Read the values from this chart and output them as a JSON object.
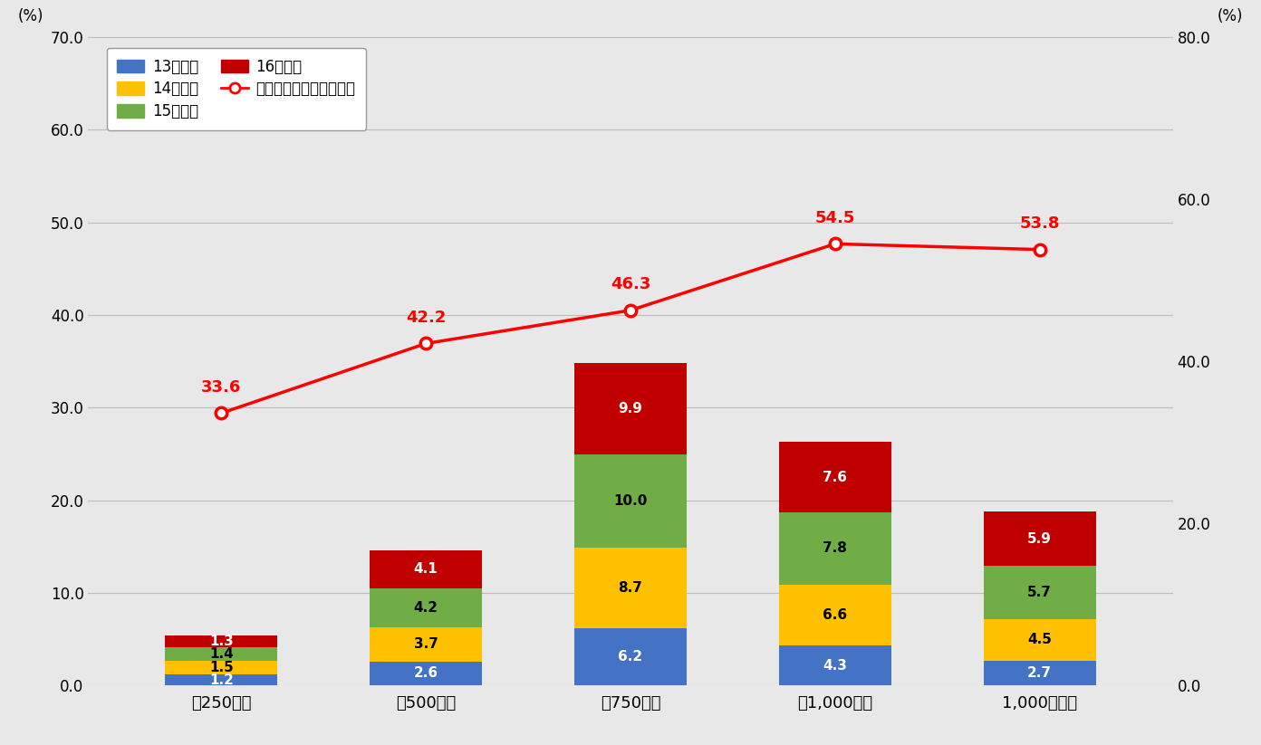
{
  "categories": [
    "＾250万円",
    "＾500万円",
    "＾750万円",
    "＾1,000万円",
    "1,000万円～"
  ],
  "bar_data": {
    "13次締切": [
      1.2,
      2.6,
      6.2,
      4.3,
      2.7
    ],
    "14次締切": [
      1.5,
      3.7,
      8.7,
      6.6,
      4.5
    ],
    "15次締切": [
      1.4,
      4.2,
      10.0,
      7.8,
      5.7
    ],
    "16次締切": [
      1.3,
      4.1,
      9.9,
      7.6,
      5.9
    ]
  },
  "bar_colors": {
    "13次締切": "#4472c4",
    "14次締切": "#ffc000",
    "15次締切": "#70ad47",
    "16次締切": "#c00000"
  },
  "bar_label_colors": {
    "13次締切": "white",
    "14次締切": "black",
    "15次締切": "black",
    "16次締切": "white"
  },
  "line_data": [
    33.6,
    42.2,
    46.3,
    54.5,
    53.8
  ],
  "line_label": "最新回の採択率（右軸）",
  "line_color": "#ff0000",
  "ylim_left": [
    0.0,
    70.0
  ],
  "ylim_right": [
    0.0,
    80.0
  ],
  "yticks_left": [
    0.0,
    10.0,
    20.0,
    30.0,
    40.0,
    50.0,
    60.0,
    70.0
  ],
  "yticks_right": [
    0.0,
    20.0,
    40.0,
    60.0,
    80.0
  ],
  "ylabel_left": "(%)",
  "ylabel_right": "(%)",
  "figsize": [
    13.92,
    8.23
  ],
  "dpi": 100,
  "background_color": "#e8e8e8",
  "plot_background_color": "#e8e8e8",
  "grid_color": "#bbbbbb",
  "bar_width": 0.55,
  "legend_items_order": [
    "13次締切",
    "14次締切",
    "15次締切",
    "16次締切"
  ]
}
